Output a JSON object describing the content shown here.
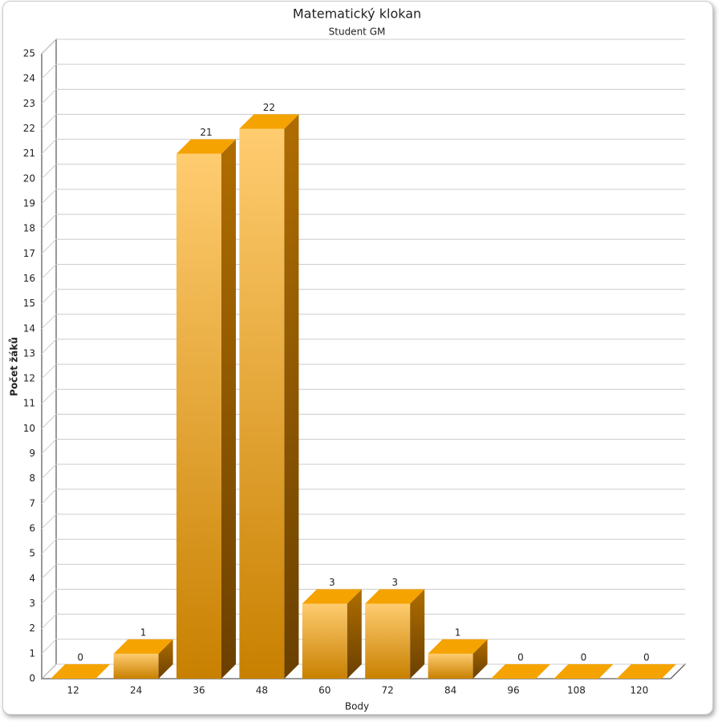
{
  "chart_data": {
    "type": "bar3d",
    "title": "Matematický klokan",
    "subtitle": "Student GM",
    "x_label": "Body",
    "y_label": "Počet žáků",
    "categories": [
      "12",
      "24",
      "36",
      "48",
      "60",
      "72",
      "84",
      "96",
      "108",
      "120"
    ],
    "values": [
      0,
      1,
      21,
      22,
      3,
      3,
      1,
      0,
      0,
      0
    ],
    "color": "#f5a300",
    "ylim": [
      0,
      25
    ],
    "yticks": [
      0,
      1,
      2,
      3,
      4,
      5,
      6,
      7,
      8,
      9,
      10,
      11,
      12,
      13,
      14,
      15,
      16,
      17,
      18,
      19,
      20,
      21,
      22,
      23,
      24,
      25
    ],
    "grid": true
  }
}
